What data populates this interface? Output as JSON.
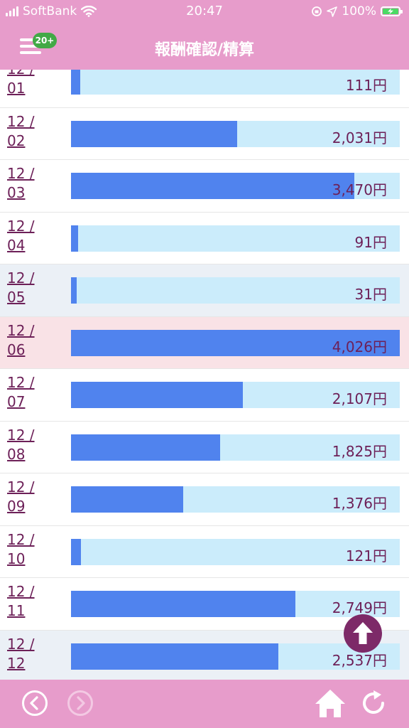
{
  "status_bar": {
    "carrier": "SoftBank",
    "time": "20:47",
    "battery": "100%"
  },
  "header": {
    "title": "報酬確認/精算",
    "menu_badge": "20+"
  },
  "rows": [
    {
      "month": "12 /",
      "day": "01",
      "amount": "111円",
      "fraction": 0.0276,
      "style": "normal"
    },
    {
      "month": "12 /",
      "day": "02",
      "amount": "2,031円",
      "fraction": 0.5045,
      "style": "normal"
    },
    {
      "month": "12 /",
      "day": "03",
      "amount": "3,470円",
      "fraction": 0.8619,
      "style": "normal"
    },
    {
      "month": "12 /",
      "day": "04",
      "amount": "91円",
      "fraction": 0.0226,
      "style": "normal"
    },
    {
      "month": "12 /",
      "day": "05",
      "amount": "31円",
      "fraction": 0.0077,
      "style": "weekend"
    },
    {
      "month": "12 /",
      "day": "06",
      "amount": "4,026円",
      "fraction": 1.0,
      "style": "highlight"
    },
    {
      "month": "12 /",
      "day": "07",
      "amount": "2,107円",
      "fraction": 0.5233,
      "style": "normal"
    },
    {
      "month": "12 /",
      "day": "08",
      "amount": "1,825円",
      "fraction": 0.4533,
      "style": "normal"
    },
    {
      "month": "12 /",
      "day": "09",
      "amount": "1,376円",
      "fraction": 0.3418,
      "style": "normal"
    },
    {
      "month": "12 /",
      "day": "10",
      "amount": "121円",
      "fraction": 0.0301,
      "style": "normal"
    },
    {
      "month": "12 /",
      "day": "11",
      "amount": "2,749円",
      "fraction": 0.6828,
      "style": "normal"
    },
    {
      "month": "12 /",
      "day": "12",
      "amount": "2,537円",
      "fraction": 0.6302,
      "style": "weekend"
    }
  ],
  "icons": {
    "menu": "hamburger-menu-icon",
    "scroll_top": "arrow-up-icon",
    "back": "chevron-left-circle-icon",
    "forward": "chevron-right-circle-icon",
    "home": "home-icon",
    "reload": "reload-icon"
  },
  "colors": {
    "brand_pink": "#e79ccb",
    "bar_fill": "#5083ee",
    "bar_track": "#cbecfb",
    "text_purple": "#6d2058",
    "highlight_row": "#f9e2e6",
    "weekend_row": "#ebf0f6",
    "badge_green": "#42a946",
    "scroll_button": "#7d2a68"
  }
}
